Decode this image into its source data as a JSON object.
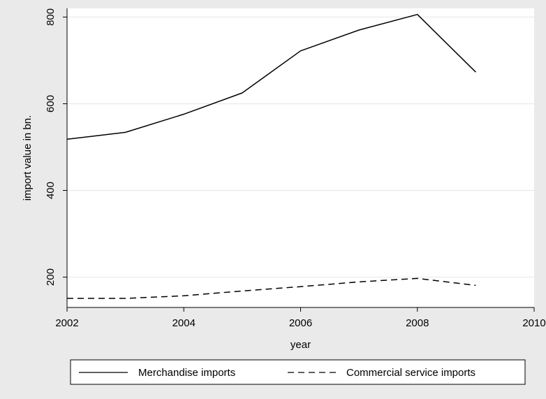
{
  "chart_data": {
    "type": "line",
    "title": "",
    "xlabel": "year",
    "ylabel": "import value in bn.",
    "xlim": [
      2002,
      2010
    ],
    "ylim": [
      130,
      820
    ],
    "x_ticks": [
      2002,
      2004,
      2006,
      2008,
      2010
    ],
    "y_ticks": [
      200,
      400,
      600,
      800
    ],
    "grid": "horizontal",
    "legend_position": "bottom",
    "x": [
      2002,
      2003,
      2004,
      2005,
      2006,
      2007,
      2008,
      2009
    ],
    "series": [
      {
        "name": "Merchandise imports",
        "style": "solid",
        "color": "#000000",
        "values": [
          518,
          534,
          576,
          625,
          722,
          770,
          806,
          673
        ]
      },
      {
        "name": "Commercial service imports",
        "style": "dashed",
        "color": "#000000",
        "values": [
          151,
          151,
          157,
          168,
          178,
          189,
          197,
          181
        ]
      }
    ]
  },
  "colors": {
    "background": "#eaeaea",
    "plot_background": "#ffffff",
    "gridline": "#eaeaea",
    "axis": "#000000"
  }
}
